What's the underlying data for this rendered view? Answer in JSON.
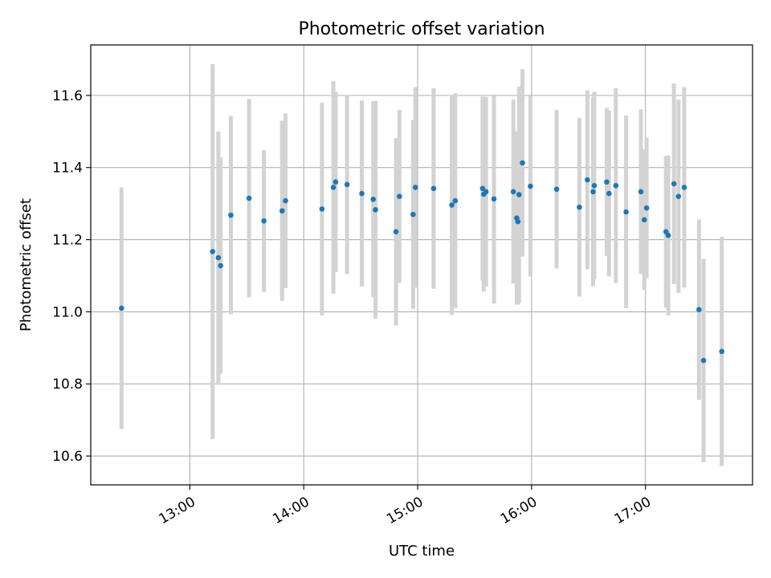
{
  "chart_data": {
    "type": "scatter",
    "title": "Photometric offset variation",
    "xlabel": "UTC time",
    "ylabel": "Photometric offset",
    "xlim_hours": [
      12.13,
      17.94
    ],
    "ylim": [
      10.52,
      11.74
    ],
    "xticks": [
      {
        "value": 13,
        "label": "13:00"
      },
      {
        "value": 14,
        "label": "14:00"
      },
      {
        "value": 15,
        "label": "15:00"
      },
      {
        "value": 16,
        "label": "16:00"
      },
      {
        "value": 17,
        "label": "17:00"
      }
    ],
    "yticks": [
      {
        "value": 10.6,
        "label": "10.6"
      },
      {
        "value": 10.8,
        "label": "10.8"
      },
      {
        "value": 11.0,
        "label": "11.0"
      },
      {
        "value": 11.2,
        "label": "11.2"
      },
      {
        "value": 11.4,
        "label": "11.4"
      },
      {
        "value": 11.6,
        "label": "11.6"
      }
    ],
    "grid": true,
    "marker_color": "#1f77b4",
    "errorbar_color": "#d3d3d3",
    "points": [
      {
        "x": 12.4,
        "y": 11.01,
        "err": 0.335
      },
      {
        "x": 13.2,
        "y": 11.167,
        "err": 0.52
      },
      {
        "x": 13.25,
        "y": 11.15,
        "err": 0.35
      },
      {
        "x": 13.27,
        "y": 11.128,
        "err": 0.3
      },
      {
        "x": 13.36,
        "y": 11.268,
        "err": 0.275
      },
      {
        "x": 13.52,
        "y": 11.315,
        "err": 0.275
      },
      {
        "x": 13.65,
        "y": 11.252,
        "err": 0.197
      },
      {
        "x": 13.81,
        "y": 11.28,
        "err": 0.25
      },
      {
        "x": 13.84,
        "y": 11.308,
        "err": 0.242
      },
      {
        "x": 14.16,
        "y": 11.285,
        "err": 0.295
      },
      {
        "x": 14.26,
        "y": 11.345,
        "err": 0.295
      },
      {
        "x": 14.28,
        "y": 11.36,
        "err": 0.25
      },
      {
        "x": 14.38,
        "y": 11.353,
        "err": 0.248
      },
      {
        "x": 14.51,
        "y": 11.328,
        "err": 0.258
      },
      {
        "x": 14.61,
        "y": 11.312,
        "err": 0.272
      },
      {
        "x": 14.63,
        "y": 11.283,
        "err": 0.302
      },
      {
        "x": 14.81,
        "y": 11.222,
        "err": 0.26
      },
      {
        "x": 14.84,
        "y": 11.32,
        "err": 0.24
      },
      {
        "x": 14.96,
        "y": 11.27,
        "err": 0.262
      },
      {
        "x": 14.98,
        "y": 11.345,
        "err": 0.278
      },
      {
        "x": 15.14,
        "y": 11.342,
        "err": 0.278
      },
      {
        "x": 15.3,
        "y": 11.296,
        "err": 0.305
      },
      {
        "x": 15.33,
        "y": 11.308,
        "err": 0.298
      },
      {
        "x": 15.57,
        "y": 11.342,
        "err": 0.255
      },
      {
        "x": 15.58,
        "y": 11.326,
        "err": 0.27
      },
      {
        "x": 15.6,
        "y": 11.333,
        "err": 0.263
      },
      {
        "x": 15.67,
        "y": 11.313,
        "err": 0.29
      },
      {
        "x": 15.84,
        "y": 11.333,
        "err": 0.255
      },
      {
        "x": 15.87,
        "y": 11.26,
        "err": 0.24
      },
      {
        "x": 15.88,
        "y": 11.25,
        "err": 0.23
      },
      {
        "x": 15.89,
        "y": 11.325,
        "err": 0.3
      },
      {
        "x": 15.92,
        "y": 11.413,
        "err": 0.26
      },
      {
        "x": 15.99,
        "y": 11.348,
        "err": 0.25
      },
      {
        "x": 16.22,
        "y": 11.34,
        "err": 0.22
      },
      {
        "x": 16.42,
        "y": 11.29,
        "err": 0.248
      },
      {
        "x": 16.49,
        "y": 11.366,
        "err": 0.248
      },
      {
        "x": 16.54,
        "y": 11.333,
        "err": 0.262
      },
      {
        "x": 16.55,
        "y": 11.35,
        "err": 0.26
      },
      {
        "x": 16.66,
        "y": 11.36,
        "err": 0.205
      },
      {
        "x": 16.68,
        "y": 11.328,
        "err": 0.23
      },
      {
        "x": 16.74,
        "y": 11.35,
        "err": 0.27
      },
      {
        "x": 16.83,
        "y": 11.277,
        "err": 0.267
      },
      {
        "x": 16.96,
        "y": 11.333,
        "err": 0.228
      },
      {
        "x": 16.99,
        "y": 11.255,
        "err": 0.195
      },
      {
        "x": 17.01,
        "y": 11.288,
        "err": 0.195
      },
      {
        "x": 17.18,
        "y": 11.222,
        "err": 0.21
      },
      {
        "x": 17.2,
        "y": 11.212,
        "err": 0.222
      },
      {
        "x": 17.25,
        "y": 11.355,
        "err": 0.278
      },
      {
        "x": 17.29,
        "y": 11.32,
        "err": 0.268
      },
      {
        "x": 17.34,
        "y": 11.345,
        "err": 0.278
      },
      {
        "x": 17.47,
        "y": 11.006,
        "err": 0.25
      },
      {
        "x": 17.51,
        "y": 10.865,
        "err": 0.282
      },
      {
        "x": 17.67,
        "y": 10.89,
        "err": 0.318
      }
    ]
  }
}
